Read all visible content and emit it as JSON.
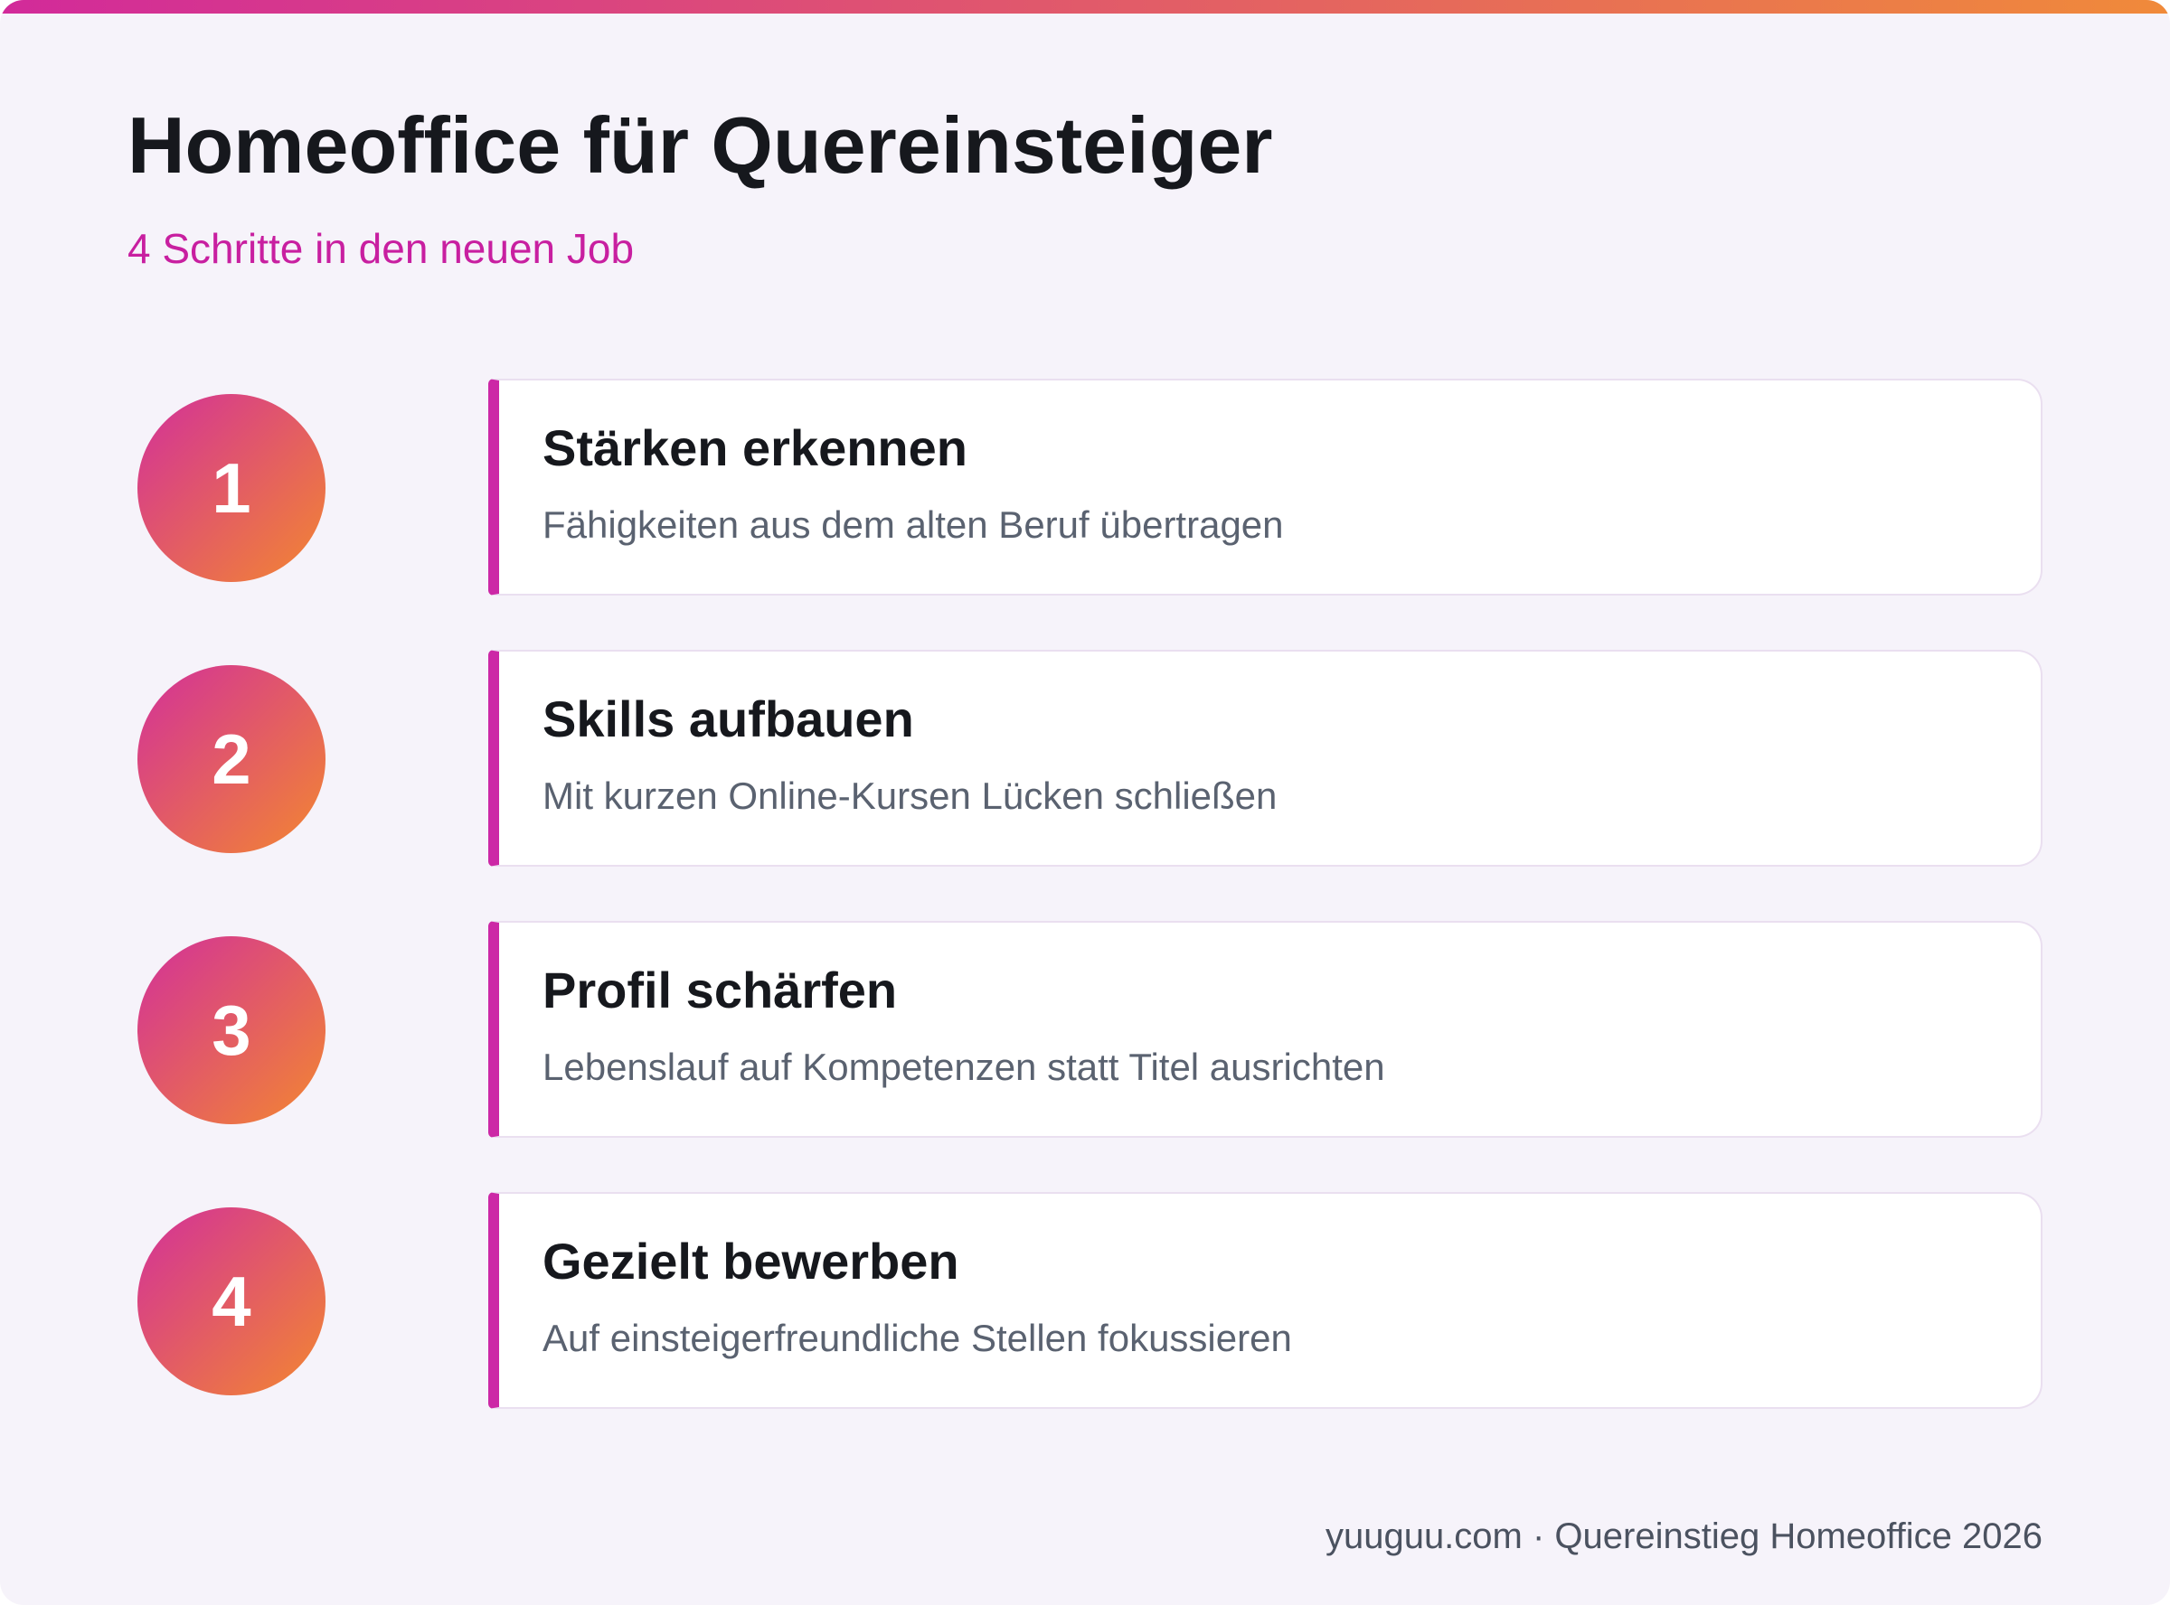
{
  "header": {
    "title": "Homeoffice für Quereinsteiger",
    "subtitle": "4 Schritte in den neuen Job"
  },
  "steps": [
    {
      "number": "1",
      "title": "Stärken erkennen",
      "description": "Fähigkeiten aus dem alten Beruf übertragen"
    },
    {
      "number": "2",
      "title": "Skills aufbauen",
      "description": "Mit kurzen Online-Kursen Lücken schließen"
    },
    {
      "number": "3",
      "title": "Profil schärfen",
      "description": "Lebenslauf auf Kompetenzen statt Titel ausrichten"
    },
    {
      "number": "4",
      "title": "Gezielt bewerben",
      "description": "Auf einsteigerfreundliche Stellen fokussieren"
    }
  ],
  "footer": "yuuguu.com · Quereinstieg Homeoffice 2026"
}
